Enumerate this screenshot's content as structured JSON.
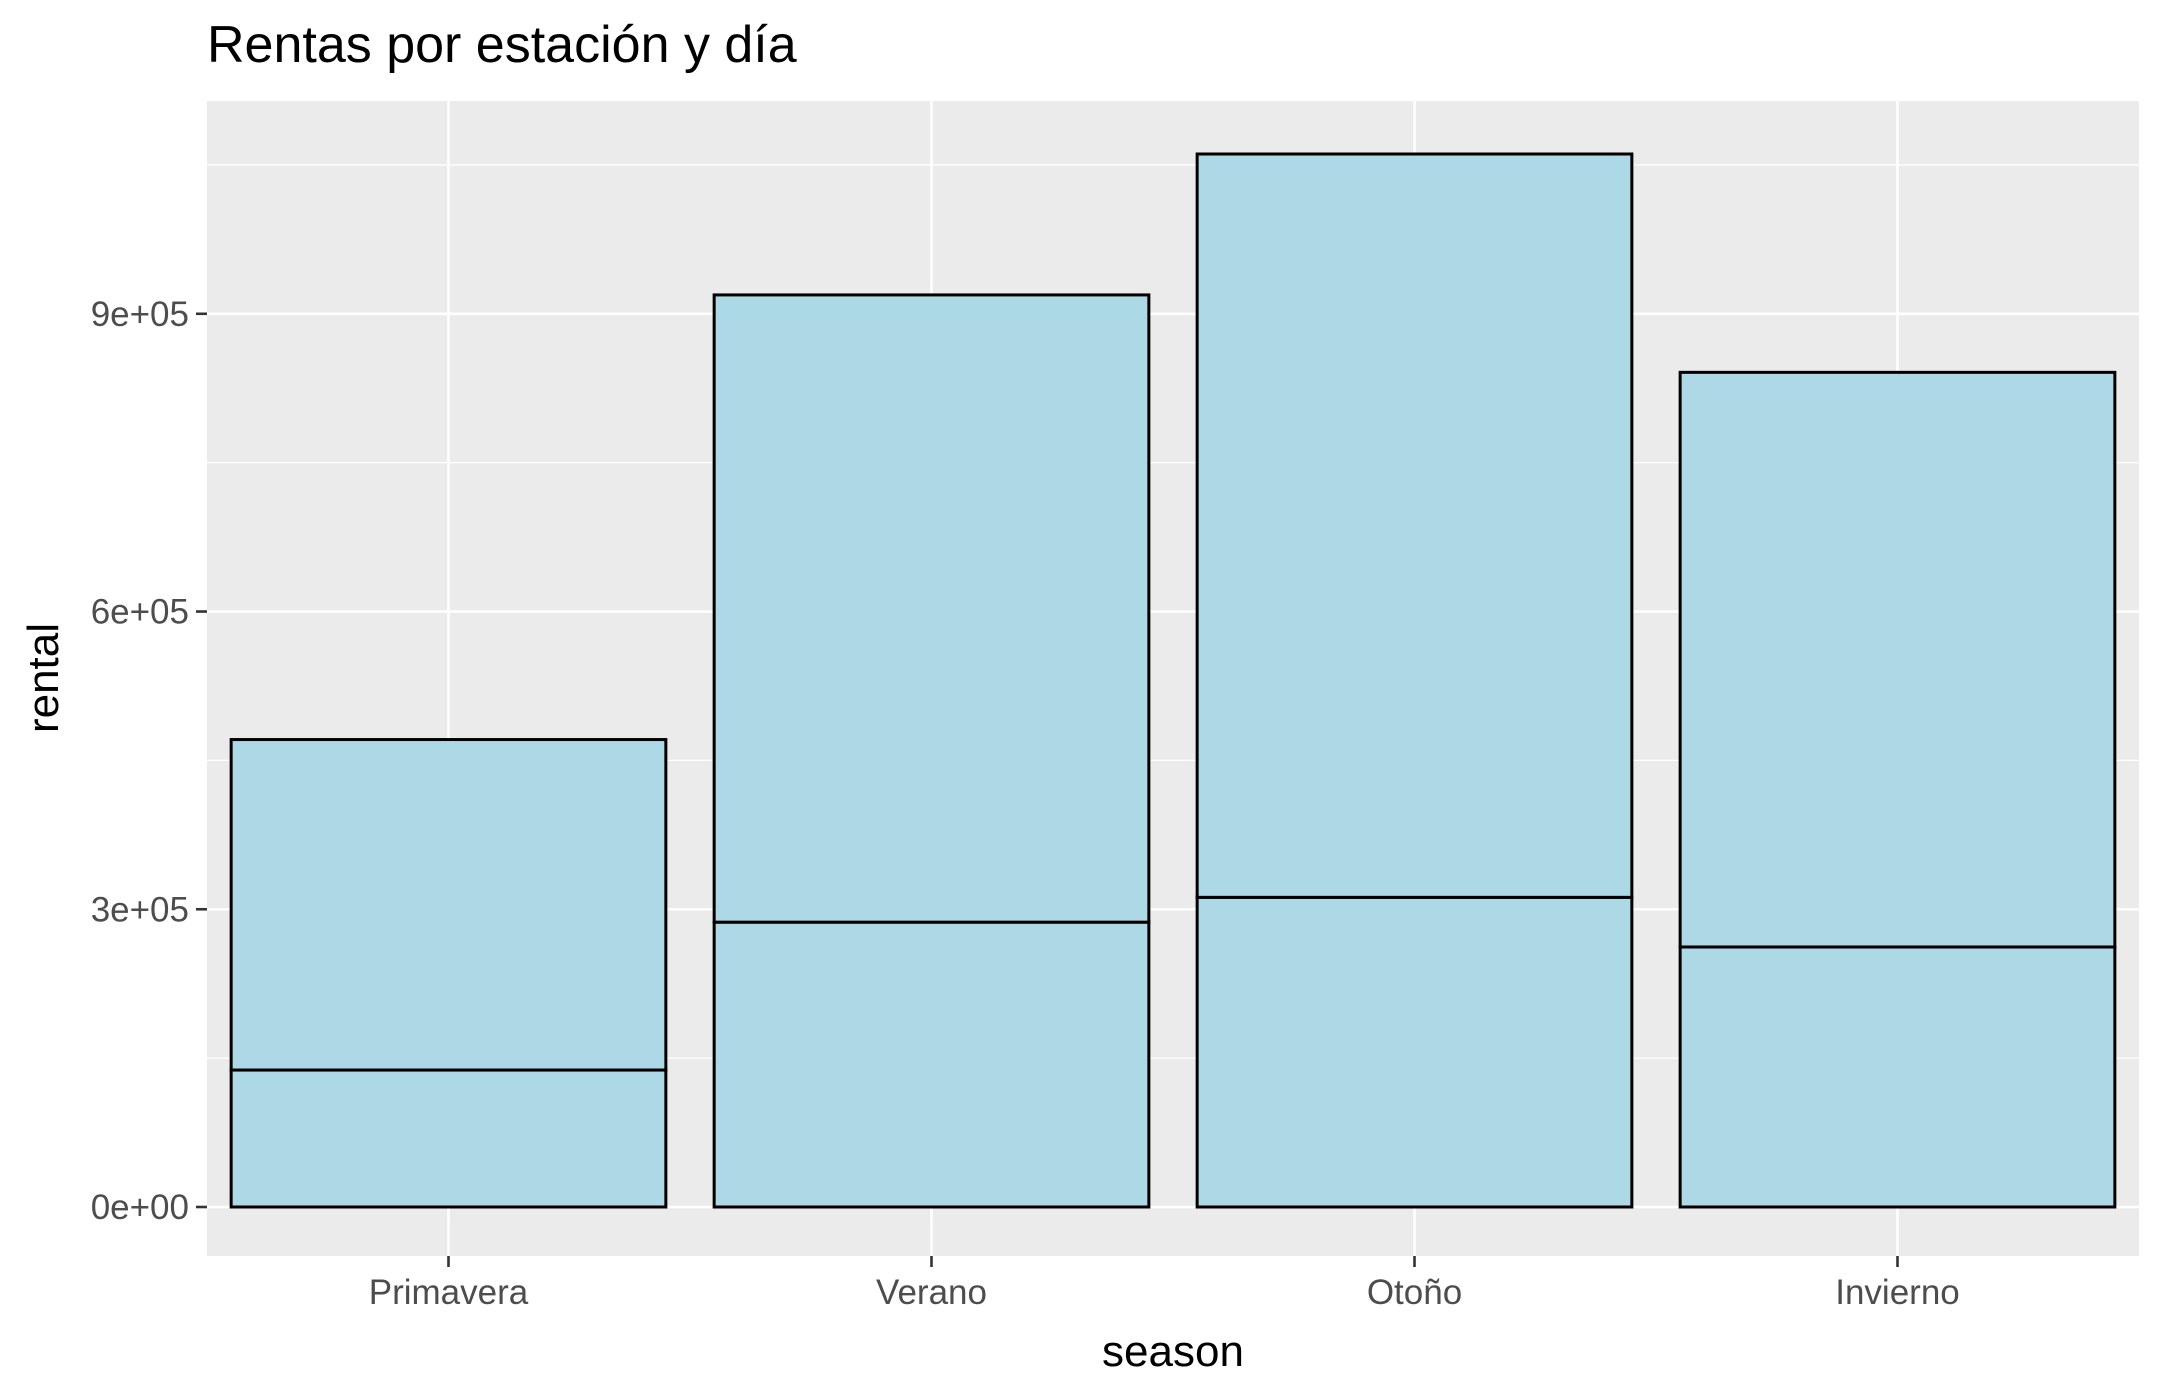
{
  "chart_data": {
    "type": "bar",
    "stacked": true,
    "title": "Rentas por estación y día",
    "xlabel": "season",
    "ylabel": "rental",
    "categories": [
      "Primavera",
      "Verano",
      "Otoño",
      "Invierno"
    ],
    "series": [
      {
        "values": [
          138000,
          287000,
          312000,
          262000
        ]
      },
      {
        "values": [
          333000,
          632000,
          749000,
          579000
        ]
      }
    ],
    "totals": [
      471000,
      919000,
      1061000,
      841000
    ],
    "ylim": [
      0,
      1061000
    ],
    "yticks": [
      0,
      300000,
      600000,
      900000
    ],
    "ytick_labels": [
      "0e+00",
      "3e+05",
      "6e+05",
      "9e+05"
    ],
    "grid": true,
    "panel_background": "#ebebeb",
    "grid_color": "#ffffff",
    "bar_fill": "#add8e6",
    "bar_outline": "#000000",
    "legend": "none"
  }
}
